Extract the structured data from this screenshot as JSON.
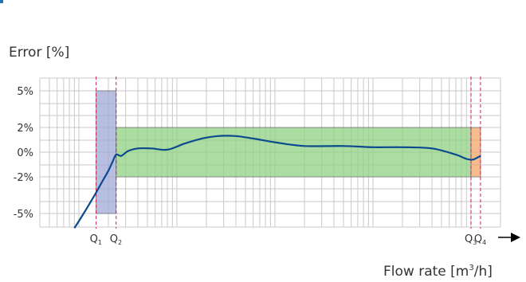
{
  "colors": {
    "accent_blue": "#1a75bb",
    "curve": "#0b4a8c",
    "grid": "#c9c9c9",
    "axis": "#000000",
    "q_lines": "#cc1f4f",
    "zone_low": "#9fa8d6",
    "zone_normal": "#8fd081",
    "zone_high": "#f4a46b"
  },
  "chart_data": {
    "type": "line",
    "ylabel": "Error [%]",
    "xlabel_main": "Flow rate [m",
    "xlabel_sup": "3",
    "xlabel_end": "/h]",
    "y_ticks": [
      {
        "value": 5,
        "label": "5%"
      },
      {
        "value": 2,
        "label": "2%"
      },
      {
        "value": 0,
        "label": "0%"
      },
      {
        "value": -2,
        "label": "-2%"
      },
      {
        "value": -5,
        "label": "-5%"
      }
    ],
    "ylim": [
      -6.2,
      6.2
    ],
    "x_scale": "log",
    "xlim": [
      0.4,
      20000
    ],
    "q_markers": [
      {
        "base": "Q",
        "sub": "1",
        "x": 1.5
      },
      {
        "base": "Q",
        "sub": "2",
        "x": 2.4
      },
      {
        "base": "Q",
        "sub": "3",
        "x": 10000
      },
      {
        "base": "Q",
        "sub": "4",
        "x": 12500
      }
    ],
    "zones": [
      {
        "name": "low",
        "x": [
          1.5,
          2.4
        ],
        "y": [
          -5,
          5
        ]
      },
      {
        "name": "normal",
        "x": [
          2.4,
          10000
        ],
        "y": [
          -2,
          2
        ]
      },
      {
        "name": "high",
        "x": [
          10000,
          12500
        ],
        "y": [
          -2,
          2
        ]
      }
    ],
    "series": [
      {
        "x": [
          0.9,
          1.1,
          1.4,
          1.7,
          2.0,
          2.2,
          2.4,
          2.7,
          3.2,
          4.0,
          5.5,
          8.0,
          12,
          18,
          26,
          40,
          60,
          100,
          200,
          500,
          1000,
          2000,
          4000,
          7000,
          9000,
          10500,
          12500
        ],
        "y": [
          -6.2,
          -5.1,
          -3.7,
          -2.5,
          -1.5,
          -0.8,
          -0.2,
          -0.3,
          0.1,
          0.3,
          0.3,
          0.2,
          0.7,
          1.1,
          1.3,
          1.3,
          1.1,
          0.8,
          0.5,
          0.5,
          0.4,
          0.4,
          0.3,
          -0.2,
          -0.55,
          -0.6,
          -0.3
        ]
      }
    ],
    "grid": true
  }
}
